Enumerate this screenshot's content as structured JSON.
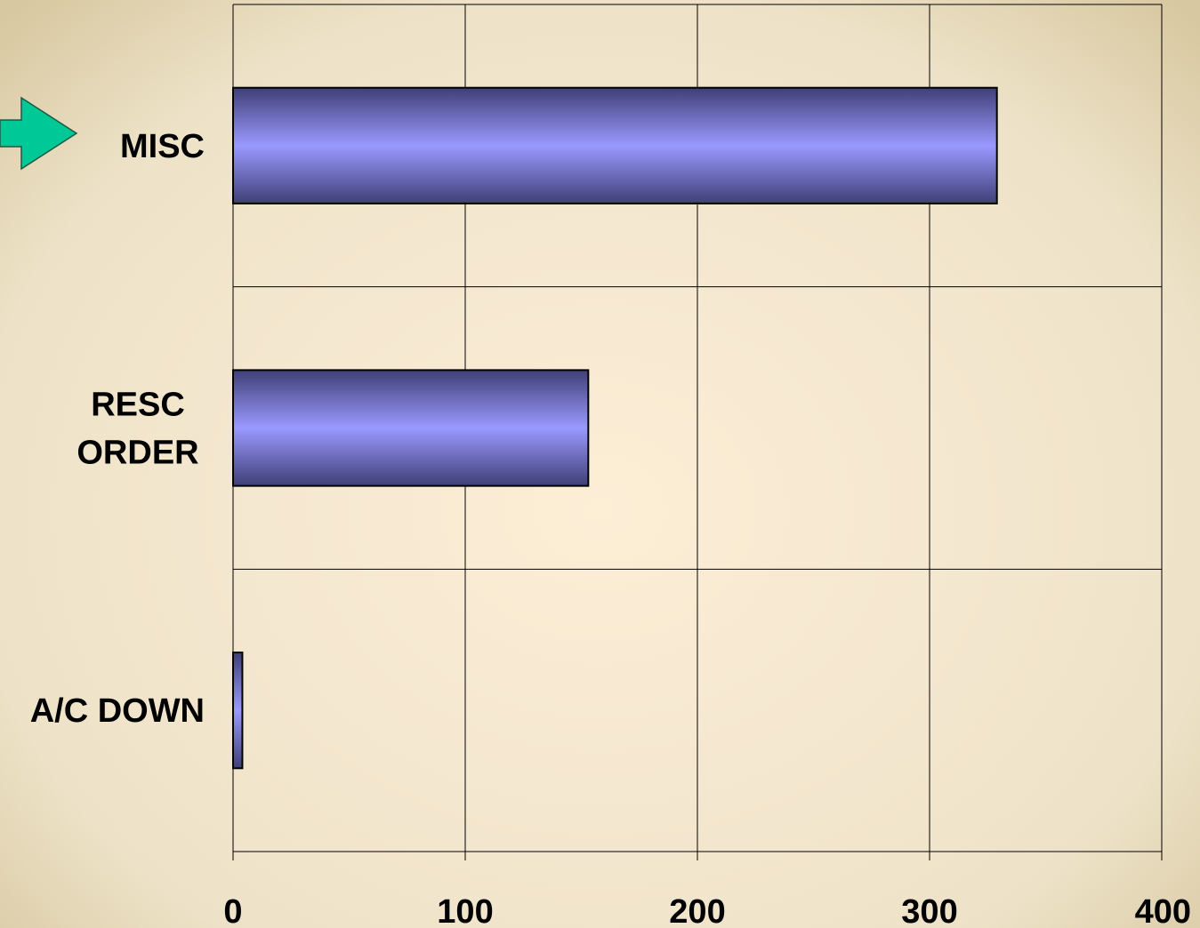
{
  "chart_data": {
    "type": "bar",
    "orientation": "horizontal",
    "categories": [
      "MISC",
      "RESC ORDER",
      "A/C DOWN"
    ],
    "category_lines": [
      [
        "MISC"
      ],
      [
        "RESC",
        "ORDER"
      ],
      [
        "A/C DOWN"
      ]
    ],
    "values": [
      329,
      153,
      4
    ],
    "xlim": [
      0,
      400
    ],
    "x_ticks": [
      0,
      100,
      200,
      300,
      400
    ],
    "tick_labels": [
      "0",
      "100",
      "200",
      "300",
      "400"
    ],
    "grid": true,
    "title": "",
    "xlabel": "",
    "ylabel": "",
    "highlighted_category": "MISC",
    "colors": {
      "bar_light": "#9a99ff",
      "bar_dark": "#3f3f77",
      "arrow": "#00c896"
    }
  }
}
